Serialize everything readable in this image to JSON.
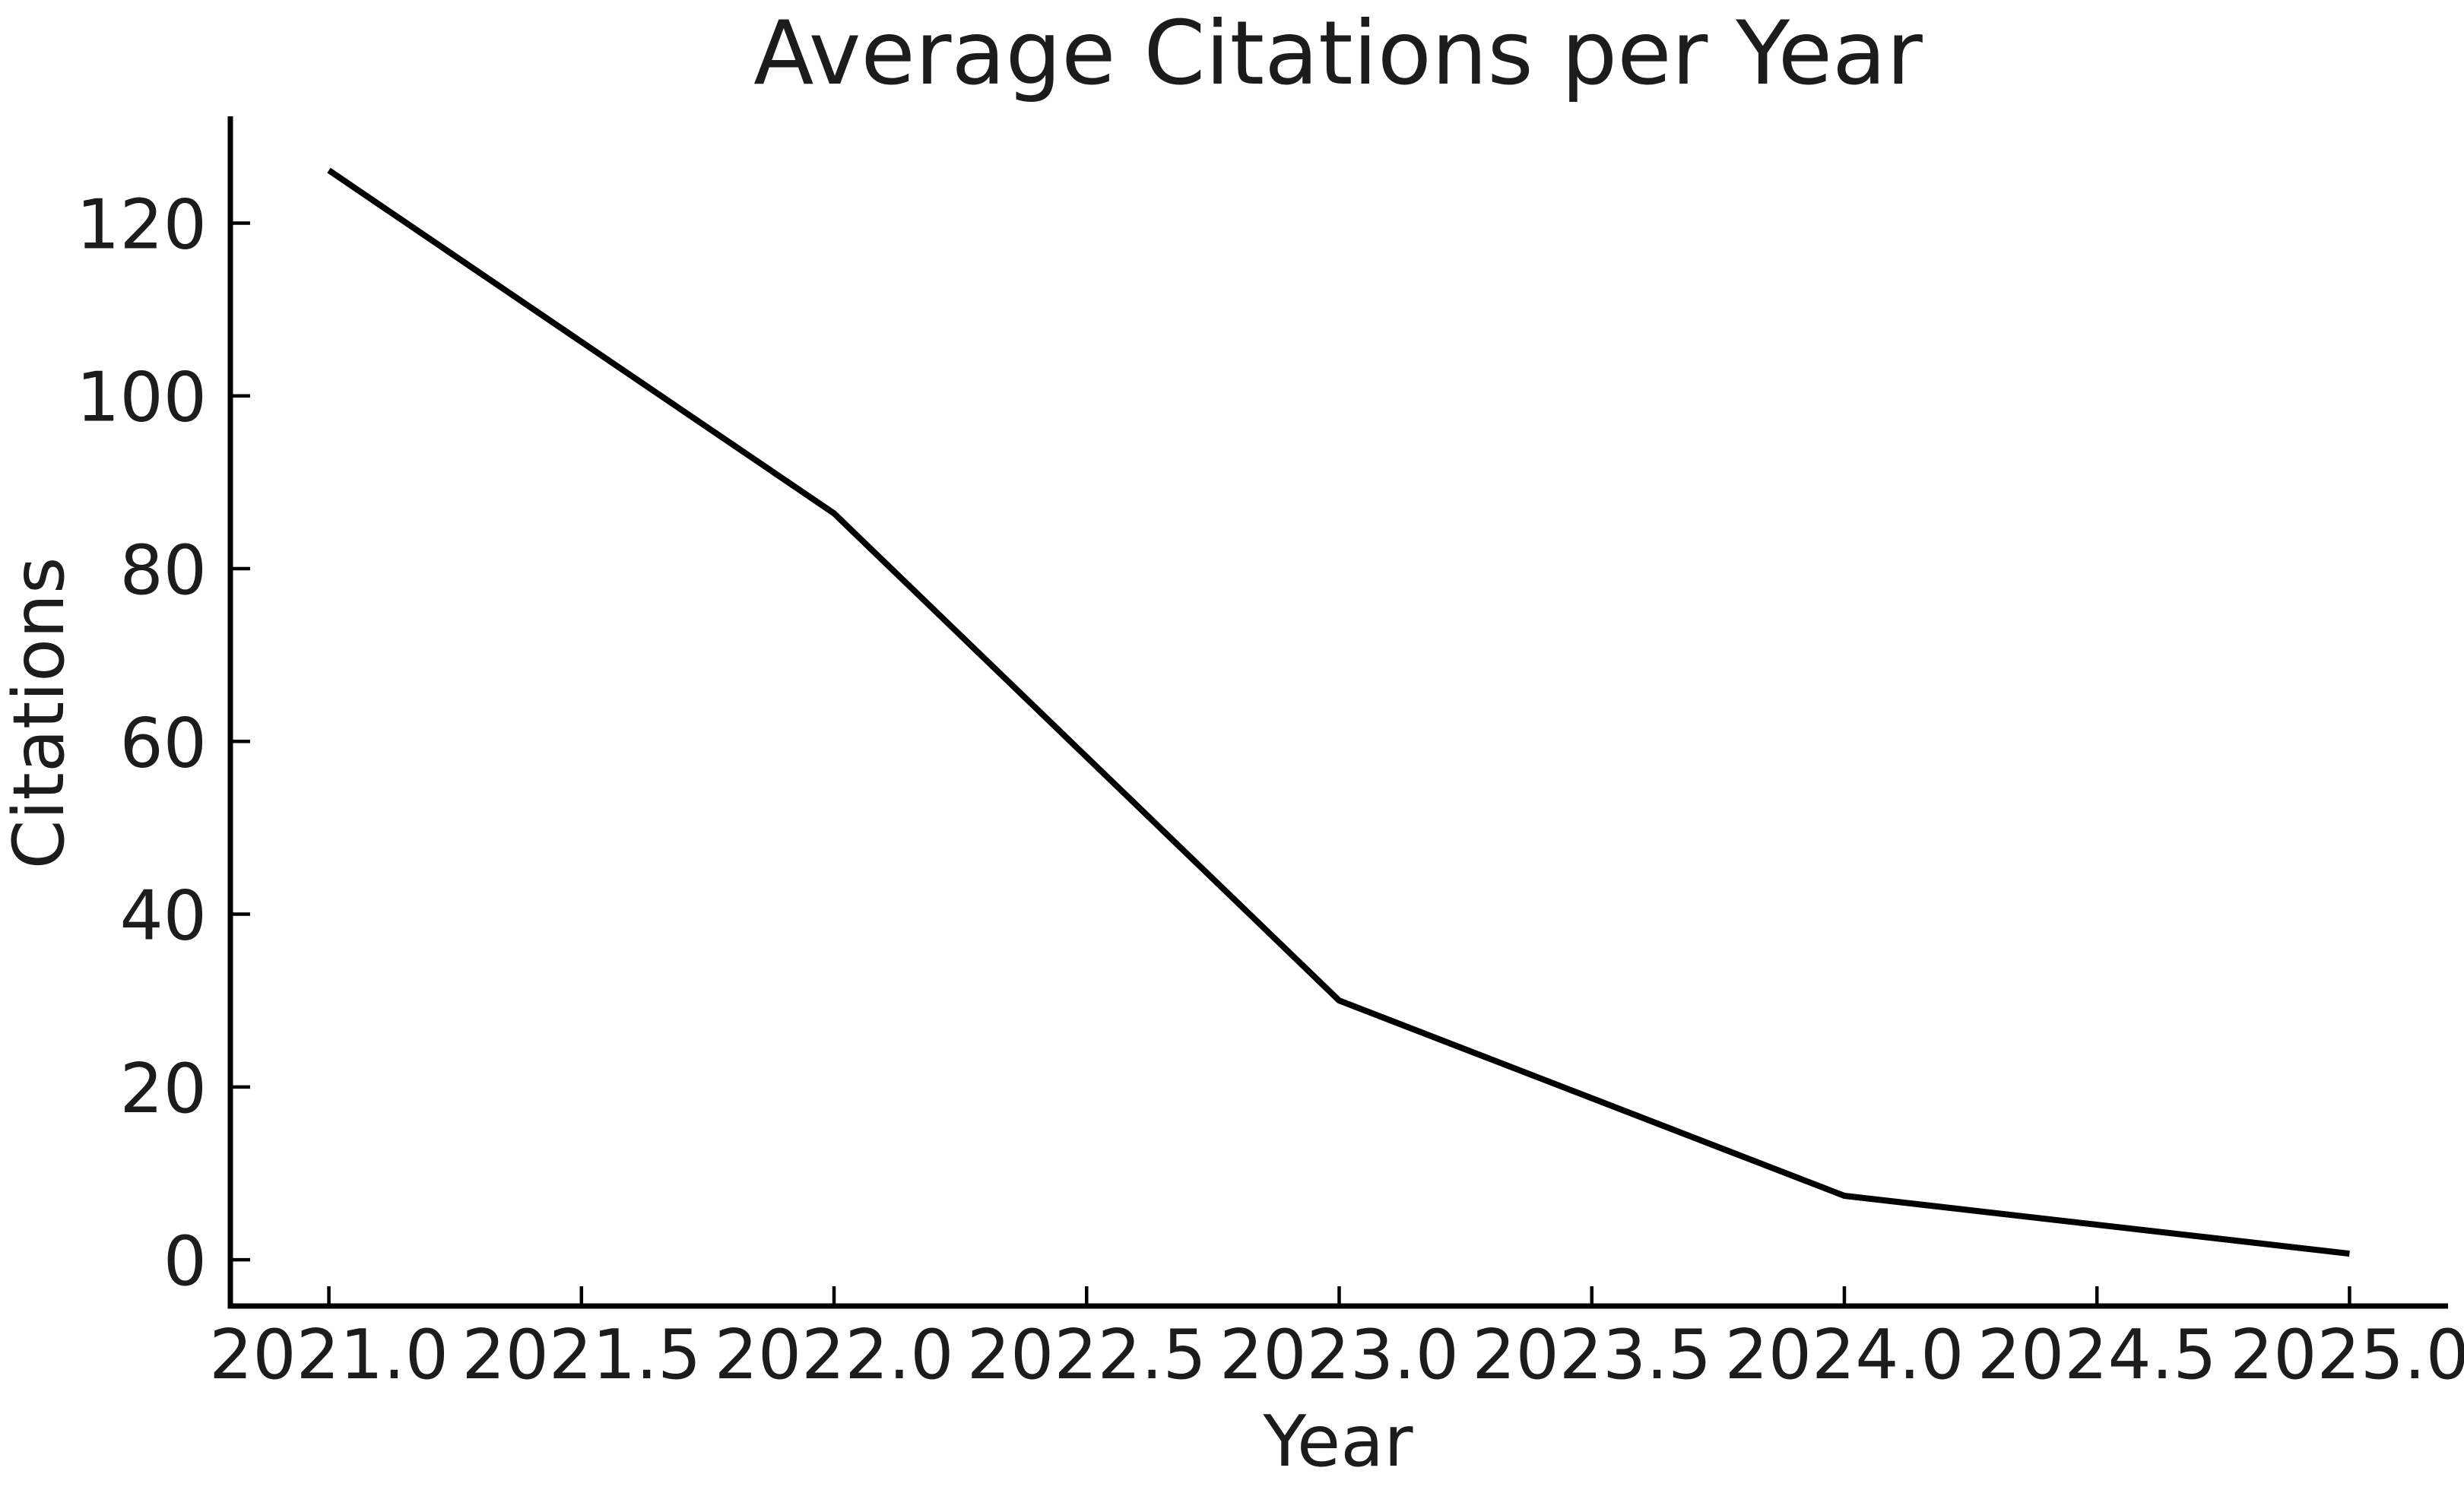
{
  "figure": {
    "background": "#ffffff",
    "text_color": "#1c1c1c",
    "axis_color": "#000000"
  },
  "chart_data": {
    "type": "line",
    "title": "Average Citations per Year",
    "xlabel": "Year",
    "ylabel": "Citations",
    "x": [
      2021,
      2022,
      2023,
      2024,
      2025
    ],
    "y": [
      126.1,
      86.4,
      30.0,
      7.4,
      0.7
    ],
    "line_color": "#000000",
    "x_tick_labels": [
      "2021.0",
      "2021.5",
      "2022.0",
      "2022.5",
      "2023.0",
      "2023.5",
      "2024.0",
      "2024.5",
      "2025.0"
    ],
    "x_tick_values": [
      2021.0,
      2021.5,
      2022.0,
      2022.5,
      2023.0,
      2023.5,
      2024.0,
      2024.5,
      2025.0
    ],
    "y_tick_labels": [
      "0",
      "20",
      "40",
      "60",
      "80",
      "100",
      "120"
    ],
    "y_tick_values": [
      0,
      20,
      40,
      60,
      80,
      100,
      120
    ],
    "xlim": [
      2020.805,
      2025.195
    ],
    "ylim": [
      -5.36,
      132.36
    ],
    "grid": false,
    "legend": false,
    "ticks_direction": "in",
    "spines": [
      "left",
      "bottom"
    ]
  }
}
